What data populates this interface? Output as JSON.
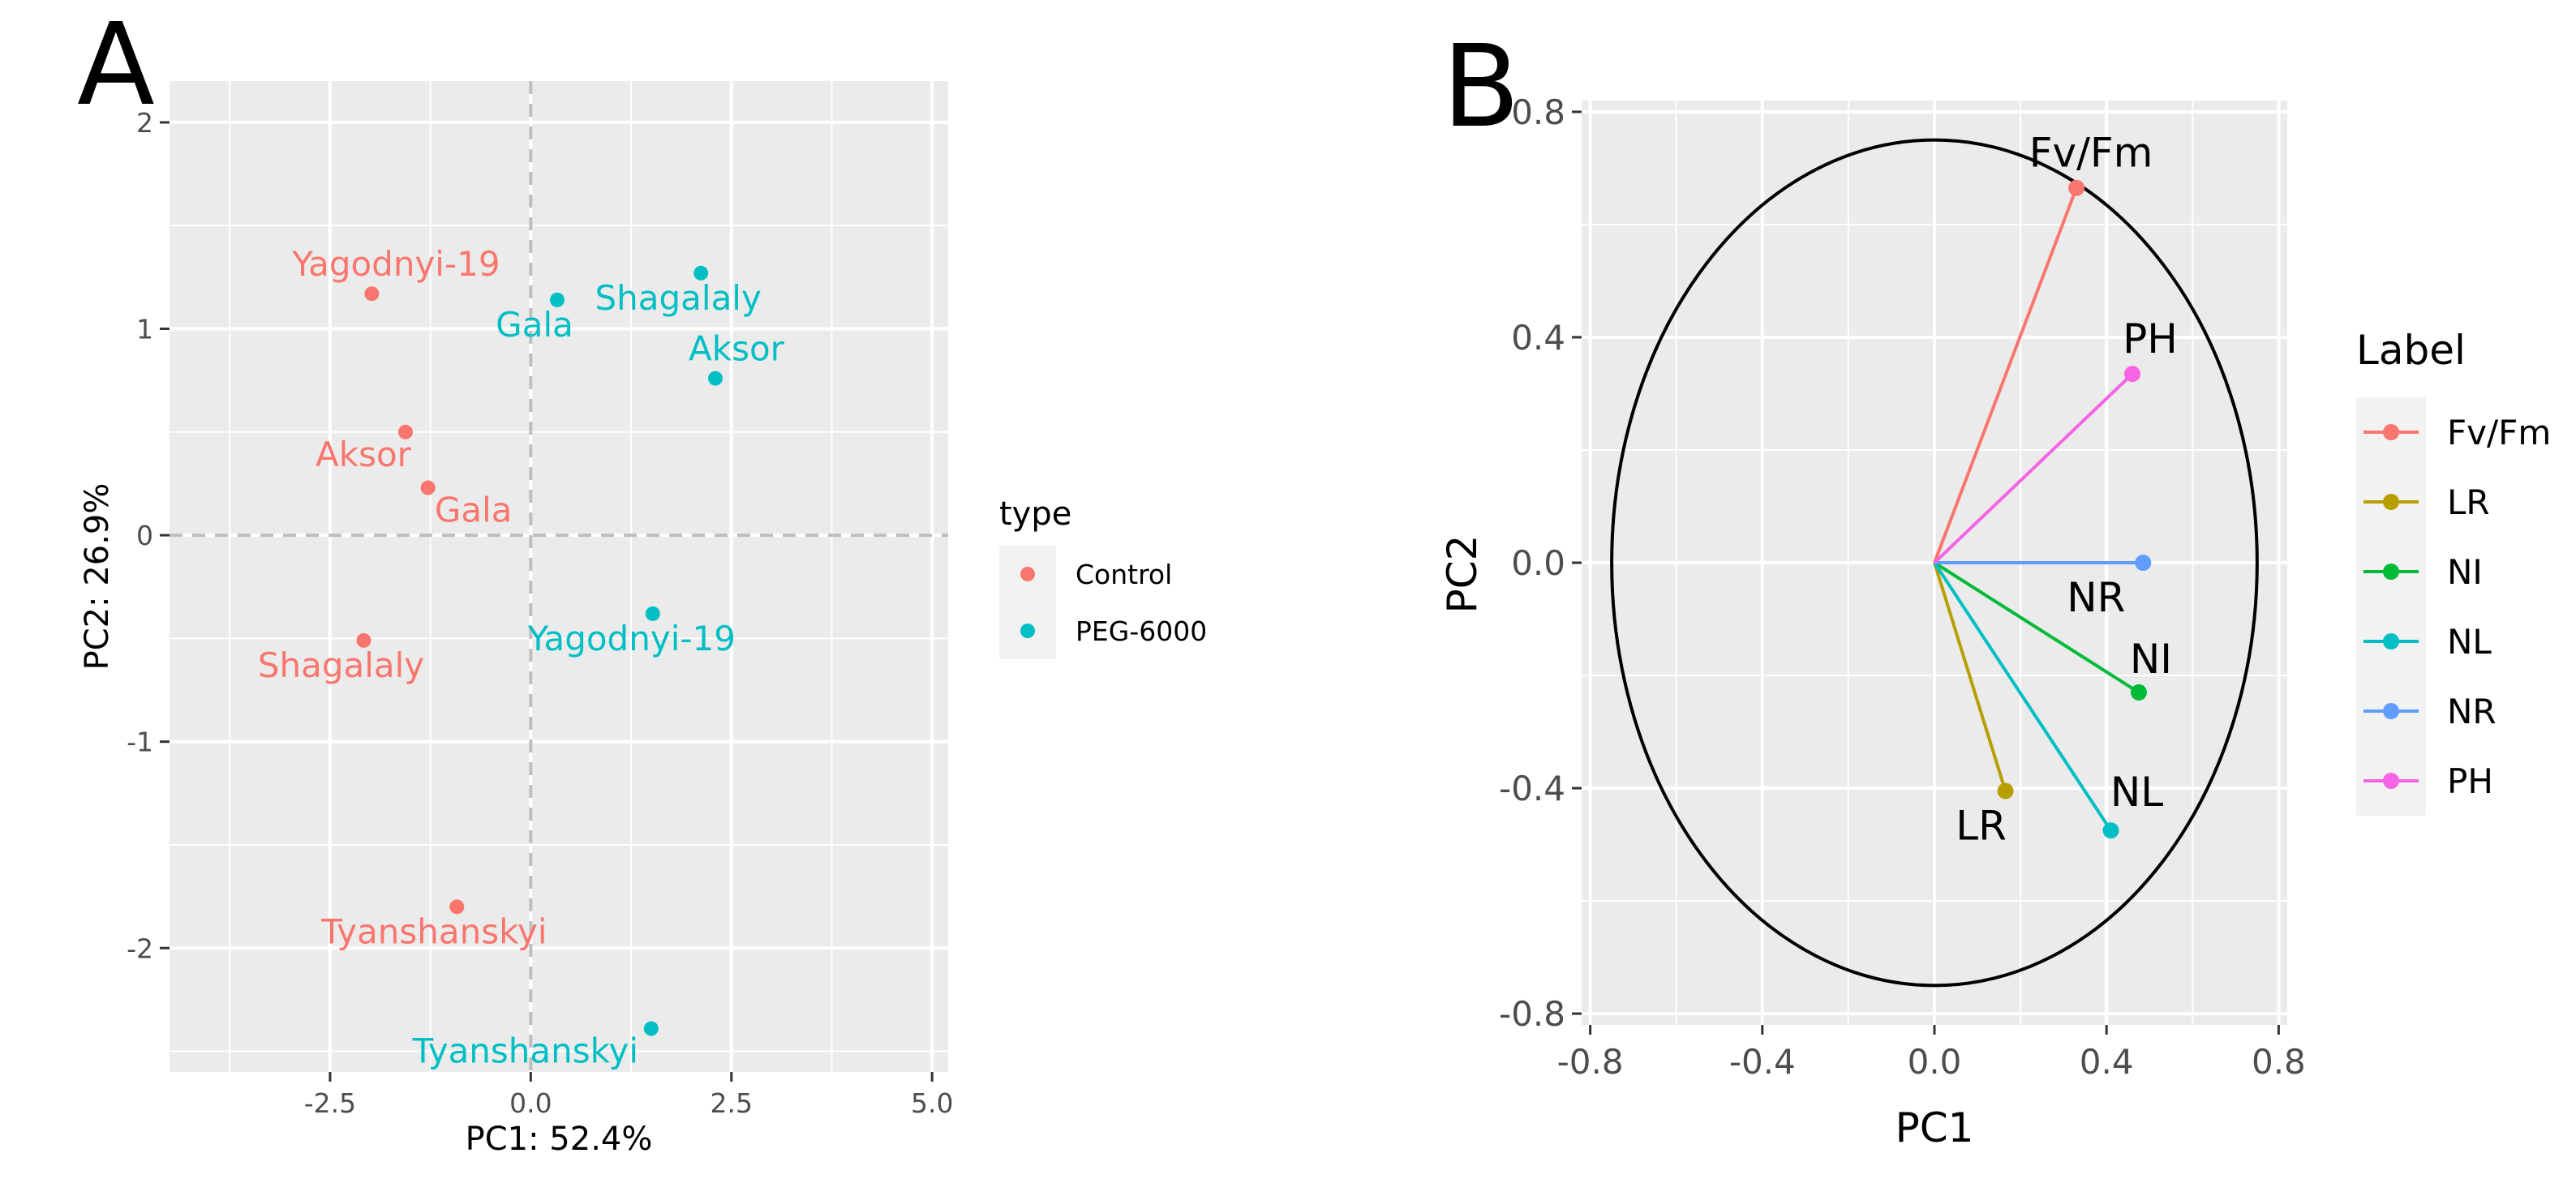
{
  "chart_data": [
    {
      "panel_label": "A",
      "type": "scatter",
      "xlabel": "PC1: 52.4%",
      "ylabel": "PC2: 26.9%",
      "xlim": [
        -4.5,
        5.2
      ],
      "ylim": [
        -2.6,
        2.2
      ],
      "xticks": [
        -2.5,
        0,
        2.5,
        5
      ],
      "xtick_labels": [
        "-2.5",
        "0.0",
        "2.5",
        "5.0"
      ],
      "yticks": [
        -2,
        -1,
        0,
        1,
        2
      ],
      "ytick_labels": [
        "-2",
        "-1",
        "0",
        "1",
        "2"
      ],
      "grid": true,
      "legend_title": "type",
      "legend_position": "right",
      "series": [
        {
          "name": "Control",
          "color": "#F8766D",
          "points": [
            {
              "label": "Yagodnyi-19",
              "x": -1.98,
              "y": 1.17
            },
            {
              "label": "Aksor",
              "x": -1.56,
              "y": 0.5
            },
            {
              "label": "Gala",
              "x": -1.28,
              "y": 0.23
            },
            {
              "label": "Shagalaly",
              "x": -2.08,
              "y": -0.51
            },
            {
              "label": "Tyanshanskyi",
              "x": -0.92,
              "y": -1.8
            }
          ]
        },
        {
          "name": "PEG-6000",
          "color": "#00BFC4",
          "points": [
            {
              "label": "Shagalaly",
              "x": 2.12,
              "y": 1.27
            },
            {
              "label": "Gala",
              "x": 0.33,
              "y": 1.14
            },
            {
              "label": "Aksor",
              "x": 2.3,
              "y": 0.76
            },
            {
              "label": "Yagodnyi-19",
              "x": 1.52,
              "y": -0.38
            },
            {
              "label": "Tyanshanskyi",
              "x": 1.5,
              "y": -2.39
            }
          ]
        }
      ]
    },
    {
      "panel_label": "B",
      "type": "scatter",
      "subtype": "loading-vectors",
      "xlabel": "PC1",
      "ylabel": "PC2",
      "xlim": [
        -0.82,
        0.82
      ],
      "ylim": [
        -0.82,
        0.82
      ],
      "xticks": [
        -0.8,
        -0.4,
        0.0,
        0.4,
        0.8
      ],
      "xtick_labels": [
        "-0.8",
        "-0.4",
        "0.0",
        "0.4",
        "0.8"
      ],
      "yticks": [
        -0.8,
        -0.4,
        0.0,
        0.4,
        0.8
      ],
      "ytick_labels": [
        "-0.8",
        "-0.4",
        "0.0",
        "0.4",
        "0.8"
      ],
      "grid": true,
      "circle_radius": 0.75,
      "legend_title": "Label",
      "legend_position": "right",
      "vectors": [
        {
          "name": "Fv/Fm",
          "color": "#F8766D",
          "x": 0.33,
          "y": 0.665
        },
        {
          "name": "LR",
          "color": "#B79F00",
          "x": 0.165,
          "y": -0.405
        },
        {
          "name": "NI",
          "color": "#00BA38",
          "x": 0.475,
          "y": -0.23
        },
        {
          "name": "NL",
          "color": "#00BFC4",
          "x": 0.41,
          "y": -0.475
        },
        {
          "name": "NR",
          "color": "#619CFF",
          "x": 0.485,
          "y": 0.0
        },
        {
          "name": "PH",
          "color": "#F564E3",
          "x": 0.46,
          "y": 0.335
        }
      ]
    }
  ]
}
